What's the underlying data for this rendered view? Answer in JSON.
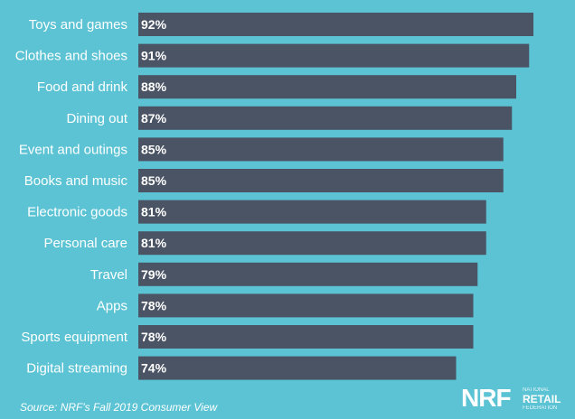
{
  "chart_data": {
    "type": "bar",
    "orientation": "horizontal",
    "categories": [
      "Toys and games",
      "Clothes and shoes",
      "Food and drink",
      "Dining out",
      "Event and outings",
      "Books and music",
      "Electronic goods",
      "Personal care",
      "Travel",
      "Apps",
      "Sports equipment",
      "Digital streaming"
    ],
    "values": [
      92,
      91,
      88,
      87,
      85,
      85,
      81,
      81,
      79,
      78,
      78,
      74
    ],
    "value_labels": [
      "92%",
      "91%",
      "88%",
      "87%",
      "85%",
      "85%",
      "81%",
      "81%",
      "79%",
      "78%",
      "78%",
      "74%"
    ],
    "xlim": [
      0,
      100
    ],
    "grid": false,
    "legend": "none",
    "bar_color": "#4a5464",
    "background_color": "#5bc3d3"
  },
  "footer": {
    "source": "Source: NRF's Fall 2019 Consumer View"
  },
  "logo": {
    "nrf": "NRF",
    "line1": "NATIONAL",
    "retail": "RETAIL",
    "line2": "FEDERATION"
  }
}
